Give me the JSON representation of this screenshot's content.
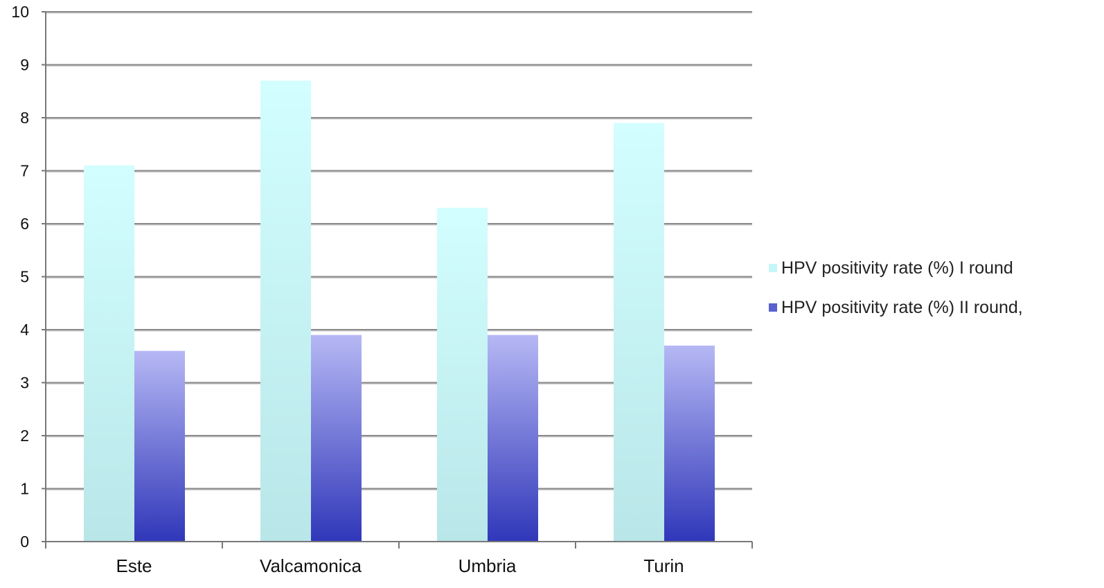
{
  "chart_data": {
    "type": "bar",
    "categories": [
      "Este",
      "Valcamonica",
      "Umbria",
      "Turin"
    ],
    "series": [
      {
        "name": "HPV positivity rate (%) I round",
        "values": [
          7.1,
          8.7,
          6.3,
          7.9
        ],
        "color": "#c8f4f6"
      },
      {
        "name": "HPV positivity rate (%) II round,",
        "values": [
          3.6,
          3.9,
          3.9,
          3.7
        ],
        "color": "#6a70d6"
      }
    ],
    "yticks": [
      "0",
      "1",
      "2",
      "3",
      "4",
      "5",
      "6",
      "7",
      "8",
      "9",
      "10"
    ],
    "ylim": [
      0,
      10
    ],
    "grid": true,
    "legend_position": "right",
    "title": "",
    "xlabel": "",
    "ylabel": ""
  }
}
